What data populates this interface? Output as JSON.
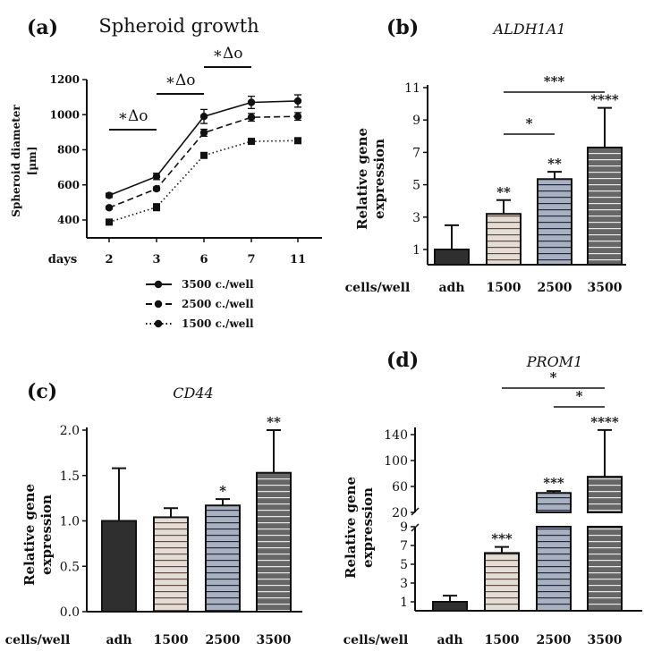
{
  "chart_data": [
    {
      "panel": "(a)",
      "type": "line",
      "title": "Spheroid growth",
      "xlabel": "days",
      "ylabel_lines": [
        "Spheroid diameter",
        "[µm]"
      ],
      "categories": [
        "2",
        "3",
        "6",
        "7",
        "11"
      ],
      "ylim": [
        300,
        1200
      ],
      "yticks": [
        "400",
        "600",
        "800",
        "1000",
        "1200"
      ],
      "series": [
        {
          "name": "3500 c./well",
          "style": "solid",
          "values": [
            540,
            648,
            990,
            1070,
            1078
          ],
          "errors": [
            12,
            18,
            40,
            35,
            35
          ]
        },
        {
          "name": "2500 c./well",
          "style": "dashed",
          "values": [
            470,
            578,
            897,
            985,
            990
          ],
          "errors": [
            8,
            10,
            20,
            22,
            22
          ]
        },
        {
          "name": "1500 c./well",
          "style": "dotted",
          "values": [
            388,
            473,
            768,
            848,
            852
          ],
          "errors": [
            15,
            20,
            15,
            12,
            12
          ]
        }
      ],
      "significance": [
        {
          "from": "2",
          "to": "3",
          "label": "∗Δo"
        },
        {
          "from": "3",
          "to": "6",
          "label": "∗Δo"
        },
        {
          "from": "6",
          "to": "7",
          "label": "∗Δo"
        }
      ]
    },
    {
      "panel": "(b)",
      "type": "bar",
      "title": "ALDH1A1",
      "xlabel": "cells/well",
      "ylabel_lines": [
        "Relative gene",
        "expression"
      ],
      "categories": [
        "adh",
        "1500",
        "2500",
        "3500"
      ],
      "values": [
        1.0,
        3.2,
        5.35,
        7.3
      ],
      "errors": [
        1.5,
        0.85,
        0.45,
        2.45
      ],
      "yticks": [
        "1",
        "3",
        "5",
        "7",
        "9",
        "11"
      ],
      "ylim": [
        0,
        11
      ],
      "stars": [
        "",
        "**",
        "**",
        "****"
      ],
      "significance": [
        {
          "from": "1500",
          "to": "2500",
          "label": "*"
        },
        {
          "from": "1500",
          "to": "3500",
          "label": "***"
        }
      ]
    },
    {
      "panel": "(c)",
      "type": "bar",
      "title": "CD44",
      "xlabel": "cells/well",
      "ylabel_lines": [
        "Relative gene",
        "expression"
      ],
      "categories": [
        "adh",
        "1500",
        "2500",
        "3500"
      ],
      "values": [
        1.0,
        1.04,
        1.17,
        1.53
      ],
      "errors": [
        0.58,
        0.1,
        0.07,
        0.47
      ],
      "yticks": [
        "0.0",
        "0.5",
        "1.0",
        "1.5",
        "2.0"
      ],
      "ylim": [
        0,
        2.0
      ],
      "stars": [
        "",
        "",
        "*",
        "**"
      ],
      "significance": []
    },
    {
      "panel": "(d)",
      "type": "bar",
      "title": "PROM1",
      "xlabel": "cells/well",
      "ylabel_lines": [
        "Relative gene",
        "expression"
      ],
      "categories": [
        "adh",
        "1500",
        "2500",
        "3500"
      ],
      "values": [
        1.0,
        6.2,
        50,
        75
      ],
      "errors": [
        0.65,
        0.65,
        3,
        72
      ],
      "yticks": [
        "1",
        "3",
        "5",
        "7",
        "9",
        "20",
        "60",
        "100",
        "140"
      ],
      "axis_break": [
        9,
        20
      ],
      "stars": [
        "",
        "***",
        "***",
        "****"
      ],
      "significance": [
        {
          "from": "1500",
          "to": "3500",
          "label": "*"
        },
        {
          "from": "2500",
          "to": "3500",
          "label": "*"
        }
      ]
    }
  ],
  "colors": {
    "adh": "#2f2f2f",
    "c1500_fill": "#e2ddd6",
    "c1500_stripe": "#6b4c3c",
    "c2500_fill": "#a9b1be",
    "c2500_stripe": "#1e2a48",
    "c3500_fill": "#666666",
    "c3500_stripe": "#e8e8e8"
  }
}
